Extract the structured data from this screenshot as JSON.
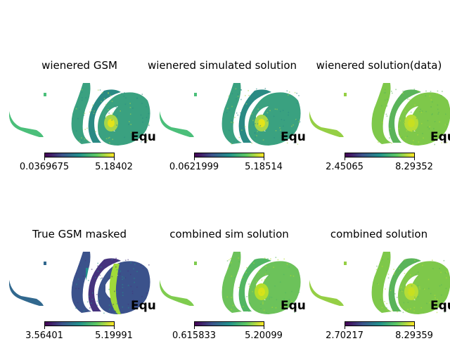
{
  "panels": [
    {
      "title": "wienered GSM",
      "equ": "Equ",
      "cmin": "0.0369675",
      "cmax": "5.18402",
      "style": "teal"
    },
    {
      "title": "wienered simulated solution",
      "equ": "Equ",
      "cmin": "0.0621999",
      "cmax": "5.18514",
      "style": "teal"
    },
    {
      "title": "wienered solution(data)",
      "equ": "Equ",
      "cmin": "2.45065",
      "cmax": "8.29352",
      "style": "lime"
    },
    {
      "title": "True GSM masked",
      "equ": "Equ",
      "cmin": "3.56401",
      "cmax": "5.19991",
      "style": "true"
    },
    {
      "title": "combined sim solution",
      "equ": "Equ",
      "cmin": "0.615833",
      "cmax": "5.20099",
      "style": "green"
    },
    {
      "title": "combined solution",
      "equ": "Equ",
      "cmin": "2.70217",
      "cmax": "8.29359",
      "style": "lime"
    }
  ]
}
